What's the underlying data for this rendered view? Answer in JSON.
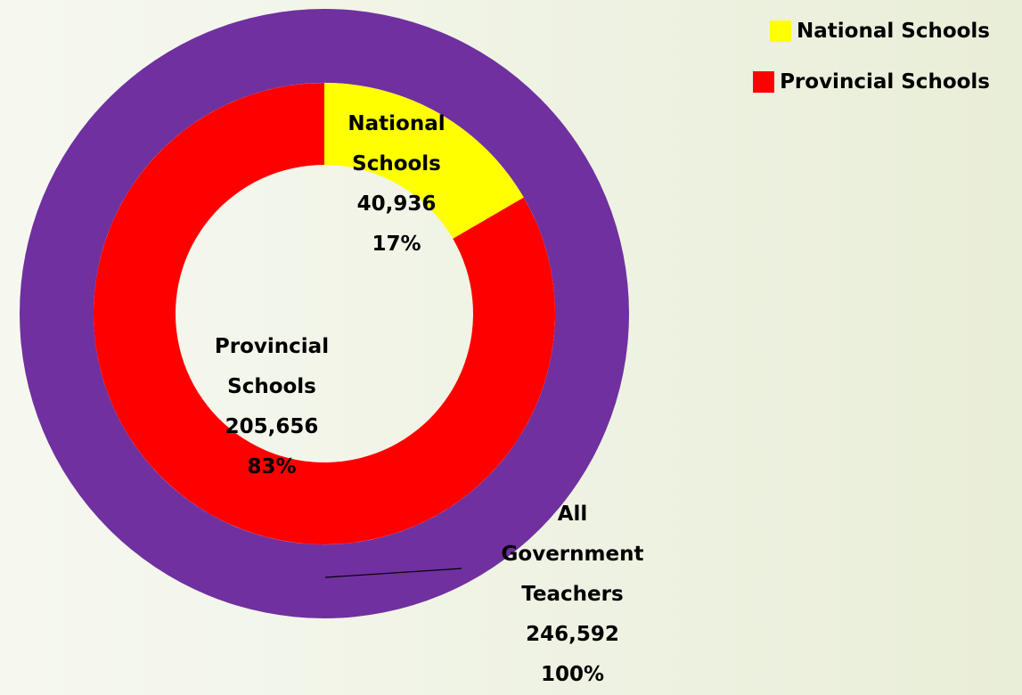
{
  "chart_data": {
    "type": "donut",
    "categories": [
      "National Schools",
      "Provincial Schools"
    ],
    "colors": [
      "#ffff00",
      "#ff0000"
    ],
    "values": [
      40936,
      205656
    ],
    "value_labels": [
      "40,936",
      "205,656"
    ],
    "percent_labels": [
      "17%",
      "83%"
    ],
    "outer": {
      "name": "All Government Teachers",
      "color": "#7030a0",
      "value": 246592,
      "value_label": "246,592",
      "percent_label": "100%"
    },
    "legend": "top-right"
  }
}
